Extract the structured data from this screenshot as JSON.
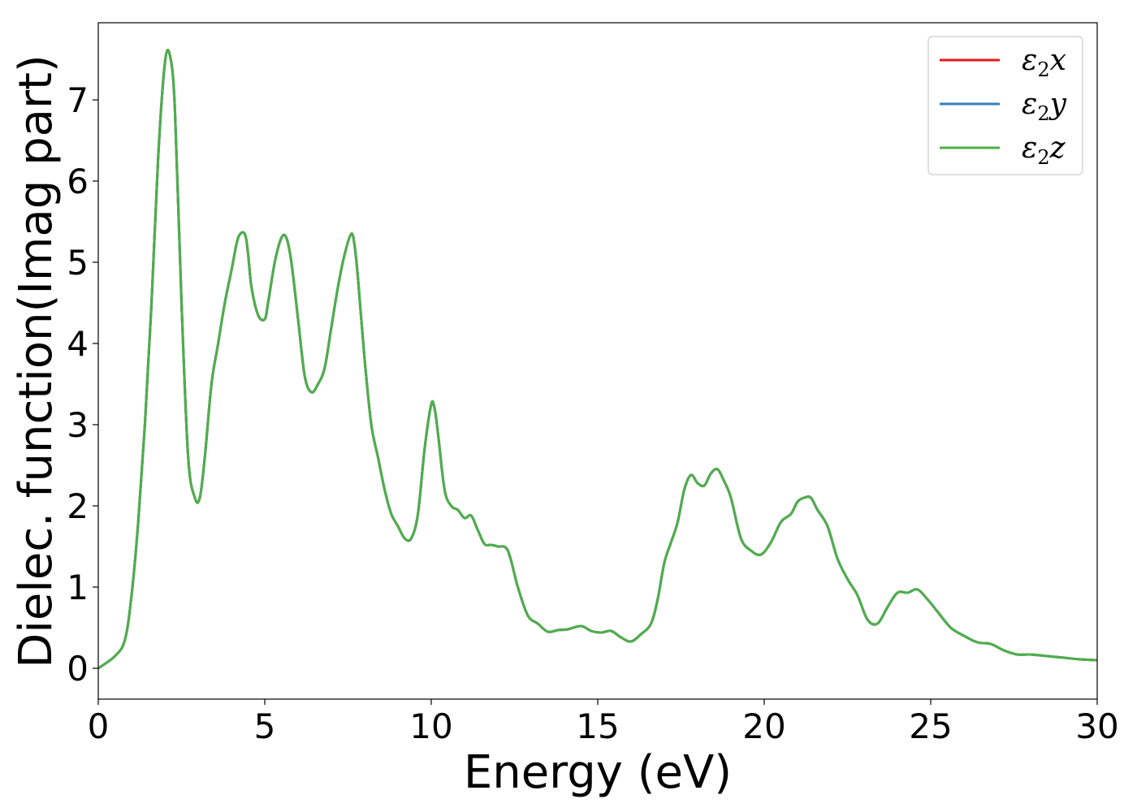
{
  "chart_data": {
    "type": "line",
    "xlabel": "Energy (eV)",
    "ylabel": "Dielec. function(Imag part)",
    "xlim": [
      0,
      30
    ],
    "ylim": [
      -0.38,
      7.95
    ],
    "xticks": [
      0,
      5,
      10,
      15,
      20,
      25,
      30
    ],
    "yticks": [
      0,
      1,
      2,
      3,
      4,
      5,
      6,
      7
    ],
    "grid": false,
    "legend_position": "top-right",
    "x": [
      0,
      0.5,
      0.8,
      1.0,
      1.2,
      1.4,
      1.6,
      1.8,
      2.0,
      2.15,
      2.3,
      2.5,
      2.7,
      2.9,
      3.05,
      3.2,
      3.4,
      3.6,
      3.8,
      4.0,
      4.2,
      4.4,
      4.5,
      4.6,
      4.8,
      5.0,
      5.1,
      5.3,
      5.5,
      5.65,
      5.8,
      6.0,
      6.2,
      6.4,
      6.6,
      6.8,
      7.0,
      7.2,
      7.4,
      7.6,
      7.7,
      7.8,
      8.0,
      8.2,
      8.4,
      8.6,
      8.8,
      9.0,
      9.2,
      9.4,
      9.6,
      9.8,
      10.0,
      10.1,
      10.2,
      10.4,
      10.6,
      10.8,
      11.0,
      11.2,
      11.4,
      11.6,
      11.8,
      12.0,
      12.3,
      12.6,
      12.9,
      13.2,
      13.5,
      13.8,
      14.1,
      14.5,
      14.8,
      15.1,
      15.4,
      15.7,
      16.0,
      16.3,
      16.6,
      16.8,
      17.0,
      17.2,
      17.4,
      17.6,
      17.8,
      18.0,
      18.2,
      18.4,
      18.6,
      18.8,
      19.0,
      19.3,
      19.6,
      19.9,
      20.2,
      20.5,
      20.8,
      21.0,
      21.2,
      21.4,
      21.6,
      21.9,
      22.2,
      22.5,
      22.8,
      23.1,
      23.4,
      23.7,
      24.0,
      24.3,
      24.6,
      24.9,
      25.2,
      25.6,
      26.0,
      26.4,
      26.8,
      27.2,
      27.6,
      28.0,
      28.5,
      29.0,
      29.5,
      30.0
    ],
    "series": [
      {
        "name": "ε₂x",
        "color": "#e41a1c",
        "values": [
          0.0,
          0.15,
          0.35,
          0.9,
          1.8,
          3.0,
          4.5,
          6.3,
          7.45,
          7.55,
          6.9,
          4.5,
          2.6,
          2.1,
          2.1,
          2.6,
          3.5,
          4.0,
          4.5,
          4.9,
          5.3,
          5.35,
          5.1,
          4.7,
          4.35,
          4.3,
          4.5,
          5.0,
          5.3,
          5.3,
          5.0,
          4.3,
          3.6,
          3.4,
          3.5,
          3.7,
          4.2,
          4.7,
          5.1,
          5.35,
          5.2,
          4.8,
          3.8,
          3.0,
          2.6,
          2.2,
          1.9,
          1.75,
          1.6,
          1.6,
          1.9,
          2.7,
          3.25,
          3.2,
          2.9,
          2.2,
          2.0,
          1.95,
          1.85,
          1.88,
          1.7,
          1.53,
          1.52,
          1.5,
          1.45,
          1.0,
          0.65,
          0.55,
          0.45,
          0.47,
          0.48,
          0.52,
          0.46,
          0.44,
          0.46,
          0.38,
          0.33,
          0.42,
          0.55,
          0.85,
          1.3,
          1.55,
          1.8,
          2.2,
          2.38,
          2.28,
          2.25,
          2.4,
          2.45,
          2.3,
          2.1,
          1.6,
          1.45,
          1.4,
          1.55,
          1.8,
          1.9,
          2.05,
          2.1,
          2.1,
          1.95,
          1.75,
          1.35,
          1.1,
          0.9,
          0.6,
          0.55,
          0.75,
          0.93,
          0.93,
          0.97,
          0.85,
          0.7,
          0.5,
          0.4,
          0.32,
          0.3,
          0.22,
          0.17,
          0.17,
          0.15,
          0.13,
          0.11,
          0.1
        ]
      },
      {
        "name": "ε₂y",
        "color": "#377eb8",
        "values": [
          0.0,
          0.15,
          0.35,
          0.9,
          1.8,
          3.0,
          4.5,
          6.3,
          7.45,
          7.55,
          6.9,
          4.5,
          2.6,
          2.1,
          2.1,
          2.6,
          3.5,
          4.0,
          4.5,
          4.9,
          5.3,
          5.35,
          5.1,
          4.7,
          4.35,
          4.3,
          4.5,
          5.0,
          5.3,
          5.3,
          5.0,
          4.3,
          3.6,
          3.4,
          3.5,
          3.7,
          4.2,
          4.7,
          5.1,
          5.35,
          5.2,
          4.8,
          3.8,
          3.0,
          2.6,
          2.2,
          1.9,
          1.75,
          1.6,
          1.6,
          1.9,
          2.7,
          3.25,
          3.2,
          2.9,
          2.2,
          2.0,
          1.95,
          1.85,
          1.88,
          1.7,
          1.53,
          1.52,
          1.5,
          1.45,
          1.0,
          0.65,
          0.55,
          0.45,
          0.47,
          0.48,
          0.52,
          0.46,
          0.44,
          0.46,
          0.38,
          0.33,
          0.42,
          0.55,
          0.85,
          1.3,
          1.55,
          1.8,
          2.2,
          2.38,
          2.28,
          2.25,
          2.4,
          2.45,
          2.3,
          2.1,
          1.6,
          1.45,
          1.4,
          1.55,
          1.8,
          1.9,
          2.05,
          2.1,
          2.1,
          1.95,
          1.75,
          1.35,
          1.1,
          0.9,
          0.6,
          0.55,
          0.75,
          0.93,
          0.93,
          0.97,
          0.85,
          0.7,
          0.5,
          0.4,
          0.32,
          0.3,
          0.22,
          0.17,
          0.17,
          0.15,
          0.13,
          0.11,
          0.1
        ]
      },
      {
        "name": "ε₂z",
        "color": "#4daf4a",
        "values": [
          0.0,
          0.15,
          0.35,
          0.9,
          1.8,
          3.0,
          4.5,
          6.3,
          7.45,
          7.55,
          6.9,
          4.5,
          2.6,
          2.1,
          2.1,
          2.6,
          3.5,
          4.0,
          4.5,
          4.9,
          5.3,
          5.35,
          5.1,
          4.7,
          4.35,
          4.3,
          4.5,
          5.0,
          5.3,
          5.3,
          5.0,
          4.3,
          3.6,
          3.4,
          3.5,
          3.7,
          4.2,
          4.7,
          5.1,
          5.35,
          5.2,
          4.8,
          3.8,
          3.0,
          2.6,
          2.2,
          1.9,
          1.75,
          1.6,
          1.6,
          1.9,
          2.7,
          3.25,
          3.2,
          2.9,
          2.2,
          2.0,
          1.95,
          1.85,
          1.88,
          1.7,
          1.53,
          1.52,
          1.5,
          1.45,
          1.0,
          0.65,
          0.55,
          0.45,
          0.47,
          0.48,
          0.52,
          0.46,
          0.44,
          0.46,
          0.38,
          0.33,
          0.42,
          0.55,
          0.85,
          1.3,
          1.55,
          1.8,
          2.2,
          2.38,
          2.28,
          2.25,
          2.4,
          2.45,
          2.3,
          2.1,
          1.6,
          1.45,
          1.4,
          1.55,
          1.8,
          1.9,
          2.05,
          2.1,
          2.1,
          1.95,
          1.75,
          1.35,
          1.1,
          0.9,
          0.6,
          0.55,
          0.75,
          0.93,
          0.93,
          0.97,
          0.85,
          0.7,
          0.5,
          0.4,
          0.32,
          0.3,
          0.22,
          0.17,
          0.17,
          0.15,
          0.13,
          0.11,
          0.1
        ]
      }
    ],
    "legend": [
      {
        "base": "ε",
        "sub": "2",
        "var": "x"
      },
      {
        "base": "ε",
        "sub": "2",
        "var": "y"
      },
      {
        "base": "ε",
        "sub": "2",
        "var": "z"
      }
    ]
  }
}
